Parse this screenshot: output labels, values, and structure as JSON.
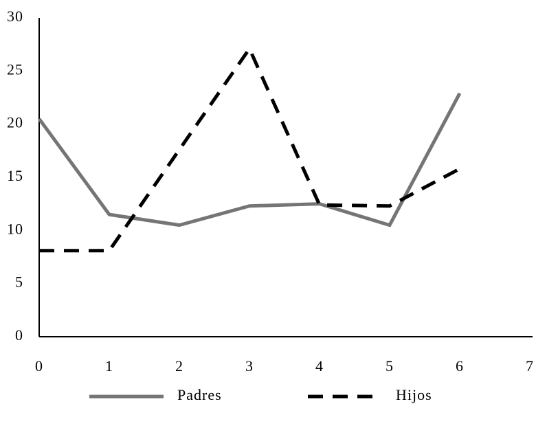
{
  "chart_data": {
    "type": "line",
    "x": [
      0,
      1,
      2,
      3,
      4,
      5,
      6
    ],
    "series": [
      {
        "name": "Padres",
        "color": "#757575",
        "dash": false,
        "values": [
          20.5,
          11.5,
          10.5,
          12.3,
          12.5,
          10.5,
          22.9
        ]
      },
      {
        "name": "Hijos",
        "color": "#000000",
        "dash": true,
        "values": [
          8.1,
          8.1,
          17.6,
          27.1,
          12.4,
          12.3,
          15.8
        ]
      }
    ],
    "xlim": [
      0,
      7
    ],
    "xticks": [
      0,
      1,
      2,
      3,
      4,
      5,
      6,
      7
    ],
    "ylim": [
      0,
      30
    ],
    "yticks": [
      0,
      5,
      10,
      15,
      20,
      25,
      30
    ],
    "grid": false,
    "legend": "bottom"
  }
}
